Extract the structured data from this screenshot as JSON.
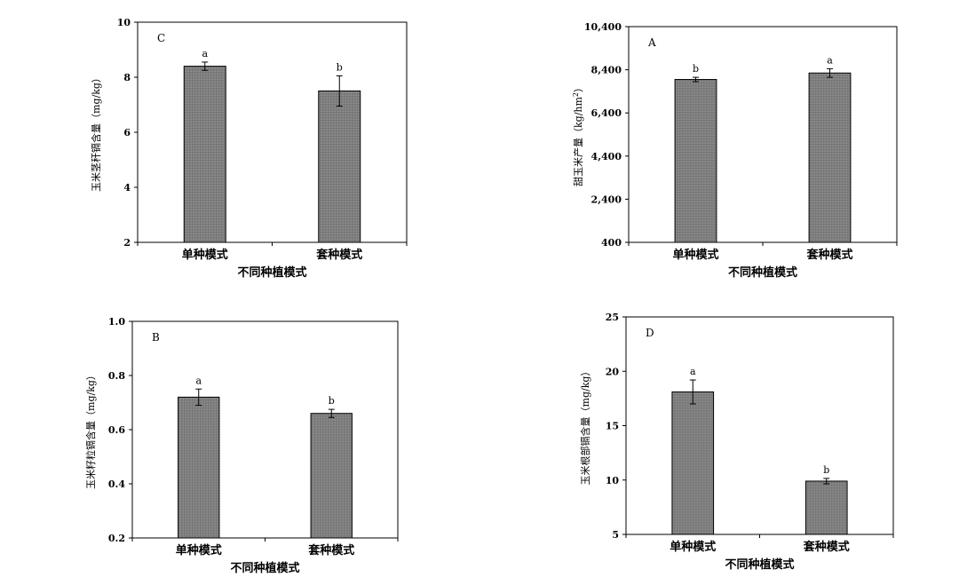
{
  "chart_data": [
    {
      "id": "C",
      "type": "bar",
      "panel_label": "C",
      "categories": [
        "单种模式",
        "套种模式"
      ],
      "values": [
        8.4,
        7.5
      ],
      "errors": [
        0.15,
        0.55
      ],
      "significance": [
        "a",
        "b"
      ],
      "xlabel": "不同种植模式",
      "ylabel": "玉米茎秆镉含量（mg/kg）",
      "ylim": [
        2,
        10
      ],
      "yticks": [
        "2",
        "4",
        "6",
        "8",
        "10"
      ],
      "ytick_values": [
        2,
        4,
        6,
        8,
        10
      ],
      "bar_color": "#808080",
      "grid": false
    },
    {
      "id": "A",
      "type": "bar",
      "panel_label": "A",
      "categories": [
        "单种模式",
        "套种模式"
      ],
      "values": [
        7950,
        8250
      ],
      "errors": [
        100,
        200
      ],
      "significance": [
        "b",
        "a"
      ],
      "xlabel": "不同种植模式",
      "ylabel_main": "甜玉米产量（kg/hm",
      "ylabel_sup": "2",
      "ylabel_end": "）",
      "ylim": [
        400,
        10400
      ],
      "yticks": [
        "400",
        "2,400",
        "4,400",
        "6,400",
        "8,400",
        "10,400"
      ],
      "ytick_values": [
        400,
        2400,
        4400,
        6400,
        8400,
        10400
      ],
      "bar_color": "#808080",
      "grid": false
    },
    {
      "id": "B",
      "type": "bar",
      "panel_label": "B",
      "categories": [
        "单种模式",
        "套种模式"
      ],
      "values": [
        0.72,
        0.66
      ],
      "errors": [
        0.03,
        0.015
      ],
      "significance": [
        "a",
        "b"
      ],
      "xlabel": "不同种植模式",
      "ylabel": "玉米籽粒镉含量（mg/kg）",
      "ylim": [
        0.2,
        1.0
      ],
      "yticks": [
        "0.2",
        "0.4",
        "0.6",
        "0.8",
        "1.0"
      ],
      "ytick_values": [
        0.2,
        0.4,
        0.6,
        0.8,
        1.0
      ],
      "bar_color": "#808080",
      "grid": false
    },
    {
      "id": "D",
      "type": "bar",
      "panel_label": "D",
      "categories": [
        "单种模式",
        "套种模式"
      ],
      "values": [
        18.1,
        9.9
      ],
      "errors": [
        1.1,
        0.25
      ],
      "significance": [
        "a",
        "b"
      ],
      "xlabel": "不同种植模式",
      "ylabel": "玉米根部镉含量（mg/kg）",
      "ylim": [
        5,
        25
      ],
      "yticks": [
        "5",
        "10",
        "15",
        "20",
        "25"
      ],
      "ytick_values": [
        5,
        10,
        15,
        20,
        25
      ],
      "bar_color": "#808080",
      "grid": false
    }
  ]
}
